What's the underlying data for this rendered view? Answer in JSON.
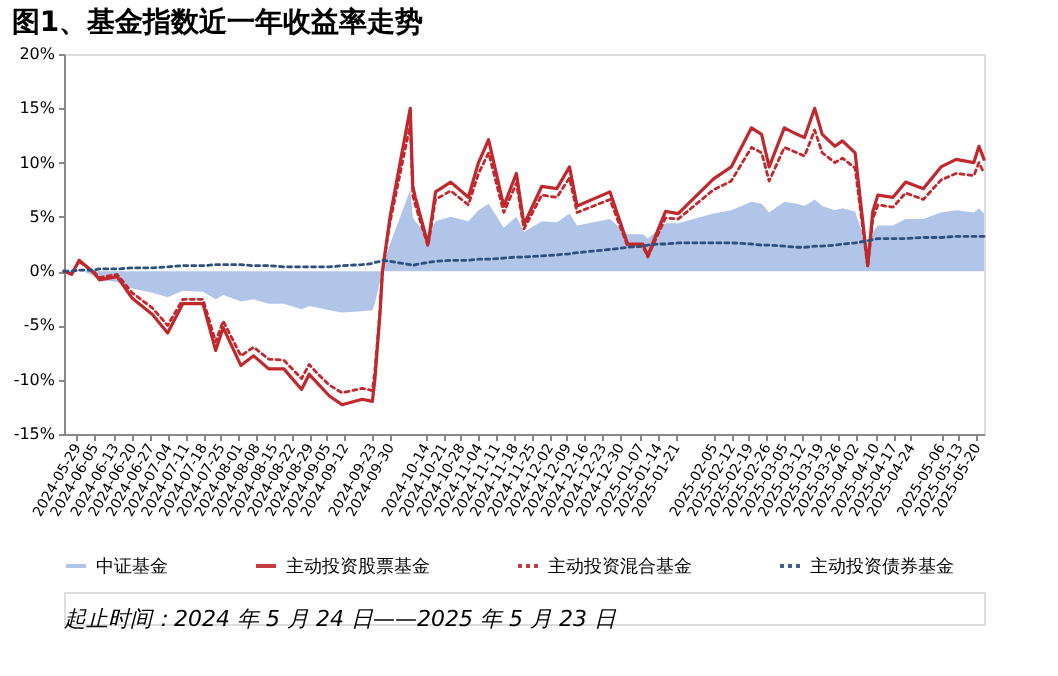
{
  "chart_data": {
    "type": "line",
    "title": "图1、基金指数近一年收益率走势",
    "x": [
      "2024-05-24",
      "2024-05-27",
      "2024-05-30",
      "2024-06-05",
      "2024-06-07",
      "2024-06-14",
      "2024-06-20",
      "2024-06-28",
      "2024-07-04",
      "2024-07-10",
      "2024-07-18",
      "2024-07-23",
      "2024-07-26",
      "2024-08-02",
      "2024-08-07",
      "2024-08-13",
      "2024-08-19",
      "2024-08-26",
      "2024-08-29",
      "2024-09-02",
      "2024-09-06",
      "2024-09-11",
      "2024-09-19",
      "2024-09-23",
      "2024-09-24",
      "2024-09-26",
      "2024-09-27",
      "2024-09-30",
      "2024-10-08",
      "2024-10-09",
      "2024-10-10",
      "2024-10-15",
      "2024-10-18",
      "2024-10-24",
      "2024-10-31",
      "2024-11-04",
      "2024-11-08",
      "2024-11-14",
      "2024-11-19",
      "2024-11-22",
      "2024-11-29",
      "2024-12-05",
      "2024-12-10",
      "2024-12-13",
      "2024-12-26",
      "2025-01-02",
      "2025-01-08",
      "2025-01-10",
      "2025-01-14",
      "2025-01-17",
      "2025-01-22",
      "2025-02-05",
      "2025-02-12",
      "2025-02-20",
      "2025-02-24",
      "2025-02-27",
      "2025-03-05",
      "2025-03-10",
      "2025-03-13",
      "2025-03-17",
      "2025-03-20",
      "2025-03-25",
      "2025-03-28",
      "2025-04-02",
      "2025-04-07",
      "2025-04-09",
      "2025-04-11",
      "2025-04-17",
      "2025-04-22",
      "2025-04-29",
      "2025-05-06",
      "2025-05-12",
      "2025-05-19",
      "2025-05-21",
      "2025-05-23"
    ],
    "series": [
      {
        "name": "中证基金",
        "type": "area",
        "color": "#a9bfe6",
        "values": [
          0,
          -0.3,
          0.2,
          -0.5,
          -0.8,
          -1.0,
          -1.6,
          -2.0,
          -2.4,
          -1.8,
          -1.9,
          -2.6,
          -2.2,
          -2.8,
          -2.6,
          -3.0,
          -3.0,
          -3.5,
          -3.2,
          -3.4,
          -3.6,
          -3.8,
          -3.7,
          -3.6,
          -3.0,
          -1.0,
          0.5,
          2.5,
          7.5,
          5.0,
          4.6,
          3.2,
          4.6,
          5.0,
          4.6,
          5.6,
          6.2,
          4.0,
          5.0,
          3.6,
          4.6,
          4.5,
          5.3,
          4.2,
          4.8,
          3.4,
          3.4,
          3.0,
          3.8,
          4.4,
          4.4,
          5.3,
          5.6,
          6.4,
          6.2,
          5.4,
          6.4,
          6.2,
          6.0,
          6.6,
          6.0,
          5.6,
          5.8,
          5.5,
          2.0,
          3.6,
          4.2,
          4.2,
          4.8,
          4.8,
          5.4,
          5.6,
          5.4,
          5.8,
          5.3
        ]
      },
      {
        "name": "主动投资股票基金",
        "line_style": "solid",
        "color": "#c0282d",
        "values": [
          0,
          -0.3,
          1.0,
          -0.2,
          -0.8,
          -0.5,
          -2.5,
          -4,
          -5.7,
          -3,
          -3,
          -7.3,
          -5.2,
          -8.7,
          -7.8,
          -9,
          -9,
          -10.9,
          -9.5,
          -10.5,
          -11.5,
          -12.3,
          -11.8,
          -12,
          -10,
          -4,
          0,
          5,
          15,
          7.8,
          6.8,
          2.5,
          7.3,
          8.2,
          6.8,
          10,
          12.1,
          6,
          9,
          4.3,
          7.8,
          7.6,
          9.6,
          6,
          7.3,
          2.5,
          2.5,
          1.4,
          3.8,
          5.5,
          5.3,
          8.5,
          9.6,
          13.2,
          12.6,
          9.6,
          13.2,
          12.6,
          12.3,
          15,
          12.6,
          11.5,
          12,
          10.9,
          0.5,
          5.5,
          7,
          6.8,
          8.2,
          7.6,
          9.6,
          10.3,
          10,
          11.5,
          10.3
        ]
      },
      {
        "name": "主动投资混合基金",
        "line_style": "dotted",
        "color": "#c0282d",
        "values": [
          0,
          -0.2,
          0.9,
          -0.1,
          -0.6,
          -0.3,
          -2.0,
          -3.4,
          -5.0,
          -2.6,
          -2.6,
          -6.5,
          -4.6,
          -7.8,
          -7.0,
          -8.1,
          -8.2,
          -9.9,
          -8.6,
          -9.6,
          -10.5,
          -11.2,
          -10.8,
          -11.0,
          -9.2,
          -3.7,
          0,
          4.5,
          13.5,
          7.0,
          6.1,
          2.3,
          6.6,
          7.4,
          6.1,
          9.0,
          10.9,
          5.4,
          8.1,
          3.9,
          7.0,
          6.8,
          8.6,
          5.4,
          6.6,
          2.3,
          2.3,
          1.3,
          3.4,
          4.9,
          4.8,
          7.5,
          8.3,
          11.4,
          10.9,
          8.3,
          11.4,
          10.9,
          10.6,
          13.0,
          10.9,
          10.0,
          10.4,
          9.5,
          0.4,
          4.8,
          6.1,
          5.9,
          7.2,
          6.6,
          8.4,
          9.0,
          8.8,
          10.0,
          9.0
        ]
      },
      {
        "name": "主动投资债券基金",
        "line_style": "dotted",
        "color": "#2f4f7f",
        "values": [
          0,
          0,
          0.1,
          0.1,
          0.2,
          0.2,
          0.3,
          0.3,
          0.4,
          0.5,
          0.5,
          0.6,
          0.6,
          0.6,
          0.5,
          0.5,
          0.4,
          0.4,
          0.4,
          0.4,
          0.4,
          0.5,
          0.6,
          0.7,
          0.8,
          0.9,
          1.0,
          0.9,
          0.6,
          0.5,
          0.6,
          0.8,
          0.9,
          1.0,
          1.0,
          1.1,
          1.1,
          1.2,
          1.3,
          1.3,
          1.4,
          1.5,
          1.6,
          1.7,
          2.0,
          2.2,
          2.3,
          2.4,
          2.5,
          2.5,
          2.6,
          2.6,
          2.6,
          2.5,
          2.4,
          2.4,
          2.3,
          2.2,
          2.2,
          2.3,
          2.3,
          2.4,
          2.5,
          2.6,
          2.8,
          2.9,
          3.0,
          3.0,
          3.0,
          3.1,
          3.1,
          3.2,
          3.2,
          3.2,
          3.2
        ]
      }
    ],
    "xlim": [
      "2024-05-24",
      "2025-05-23"
    ],
    "xticks": [
      "2024-05-29",
      "2024-06-05",
      "2024-06-13",
      "2024-06-20",
      "2024-06-27",
      "2024-07-04",
      "2024-07-11",
      "2024-07-18",
      "2024-07-25",
      "2024-08-01",
      "2024-08-08",
      "2024-08-15",
      "2024-08-22",
      "2024-08-29",
      "2024-09-05",
      "2024-09-12",
      "2024-09-23",
      "2024-09-30",
      "2024-10-14",
      "2024-10-21",
      "2024-10-28",
      "2024-11-04",
      "2024-11-11",
      "2024-11-18",
      "2024-11-25",
      "2024-12-02",
      "2024-12-09",
      "2024-12-16",
      "2024-12-23",
      "2024-12-30",
      "2025-01-07",
      "2025-01-14",
      "2025-01-21",
      "2025-02-05",
      "2025-02-12",
      "2025-02-19",
      "2025-02-26",
      "2025-03-05",
      "2025-03-12",
      "2025-03-19",
      "2025-03-26",
      "2025-04-02",
      "2025-04-10",
      "2025-04-17",
      "2025-04-24",
      "2025-05-06",
      "2025-05-13",
      "2025-05-20"
    ],
    "ylim": [
      -15,
      20
    ],
    "yticks": [
      {
        "value": -15,
        "label": "-15%"
      },
      {
        "value": -10,
        "label": "-10%"
      },
      {
        "value": -5,
        "label": "-5%"
      },
      {
        "value": 0,
        "label": "0%"
      },
      {
        "value": 5,
        "label": "5%"
      },
      {
        "value": 10,
        "label": "10%"
      },
      {
        "value": 15,
        "label": "15%"
      },
      {
        "value": 20,
        "label": "20%"
      }
    ],
    "grid": false,
    "legend": "bottom",
    "annotations": [
      "起止时间：2024 年 5 月 24 日——2025 年 5 月 23 日"
    ]
  }
}
